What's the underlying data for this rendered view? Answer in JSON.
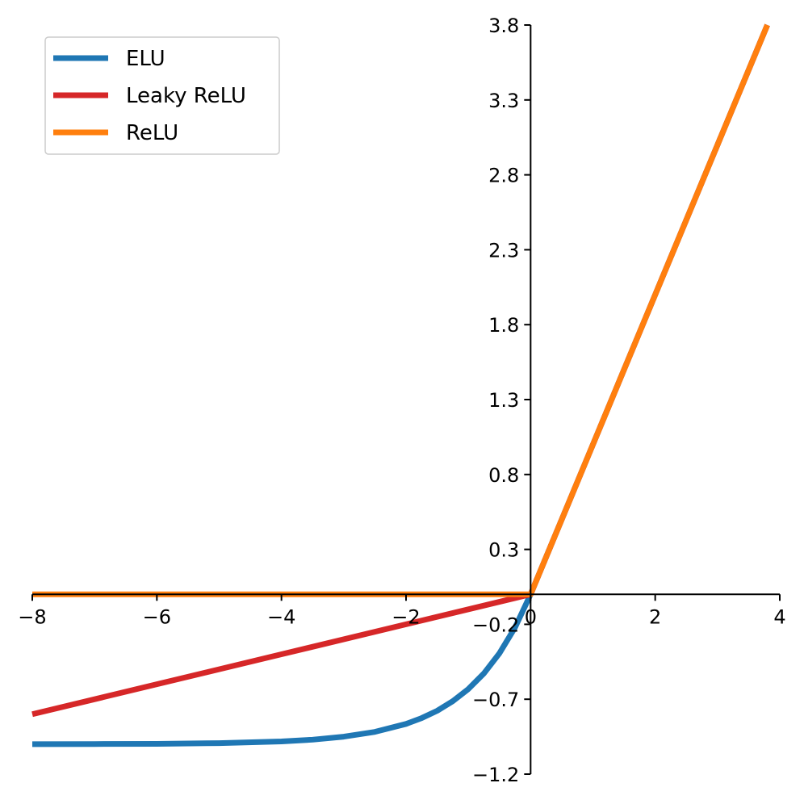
{
  "chart_data": {
    "type": "line",
    "title": "",
    "xlabel": "",
    "ylabel": "",
    "xlim": [
      -8,
      4
    ],
    "ylim": [
      -1.2,
      3.8
    ],
    "x_ticks": [
      -8,
      -6,
      -4,
      -2,
      0,
      2,
      4
    ],
    "x_tick_labels": [
      "−8",
      "−6",
      "−4",
      "−2",
      "0",
      "2",
      "4"
    ],
    "y_ticks": [
      -1.2,
      -0.7,
      -0.2,
      0.3,
      0.8,
      1.3,
      1.8,
      2.3,
      2.8,
      3.3,
      3.8
    ],
    "y_tick_labels": [
      "−1.2",
      "−0.7",
      "−0.2",
      "0.3",
      "0.8",
      "1.3",
      "1.8",
      "2.3",
      "2.8",
      "3.3",
      "3.8"
    ],
    "grid": false,
    "legend_position": "top-left",
    "series": [
      {
        "name": "ELU",
        "color": "#1f77b4",
        "x": [
          -8,
          -7,
          -6,
          -5,
          -4,
          -3.5,
          -3,
          -2.5,
          -2,
          -1.75,
          -1.5,
          -1.25,
          -1,
          -0.75,
          -0.5,
          -0.25,
          0,
          1,
          2,
          3,
          3.8
        ],
        "y": [
          -1.0,
          -0.999,
          -0.998,
          -0.993,
          -0.982,
          -0.97,
          -0.95,
          -0.918,
          -0.865,
          -0.826,
          -0.777,
          -0.713,
          -0.632,
          -0.528,
          -0.393,
          -0.221,
          0,
          1,
          2,
          3,
          3.8
        ]
      },
      {
        "name": "Leaky ReLU",
        "color": "#d62728",
        "x": [
          -8,
          -6,
          -4,
          -2,
          0,
          1,
          2,
          3,
          3.8
        ],
        "y": [
          -0.8,
          -0.6,
          -0.4,
          -0.2,
          0,
          1,
          2,
          3,
          3.8
        ]
      },
      {
        "name": "ReLU",
        "color": "#ff7f0e",
        "x": [
          -8,
          -6,
          -4,
          -2,
          0,
          1,
          2,
          3,
          3.8
        ],
        "y": [
          0,
          0,
          0,
          0,
          0,
          1,
          2,
          3,
          3.8
        ]
      }
    ]
  }
}
